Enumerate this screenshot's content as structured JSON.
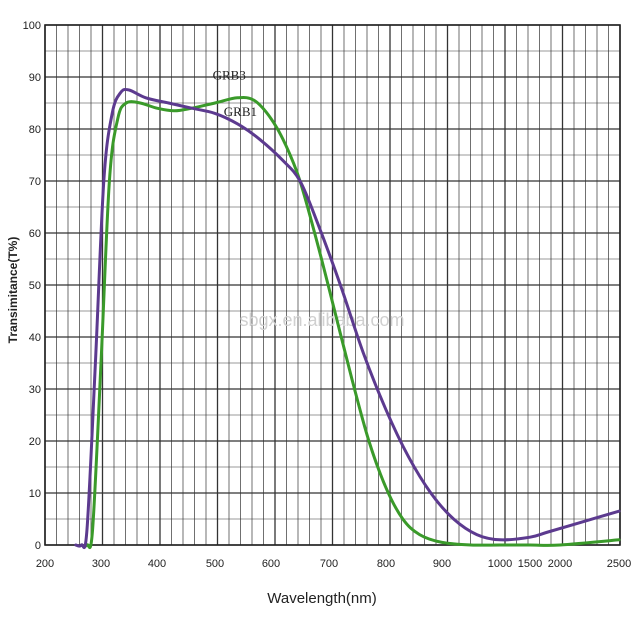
{
  "chart_data": {
    "type": "line",
    "title": "",
    "xlabel": "Wavelength(nm)",
    "ylabel": "Transimitance(T%)",
    "x_ticks": [
      "200",
      "300",
      "400",
      "500",
      "600",
      "700",
      "800",
      "900",
      "1000",
      "1500",
      "2000",
      "2500"
    ],
    "y_ticks": [
      "0",
      "10",
      "20",
      "30",
      "40",
      "50",
      "60",
      "70",
      "80",
      "90",
      "100"
    ],
    "ylim": [
      0,
      100
    ],
    "grid": true,
    "watermark": "sbgx.en.alibaba.com",
    "series": [
      {
        "name": "GRB3",
        "color": "#3a9a2a",
        "points": [
          [
            265,
            0
          ],
          [
            275,
            0
          ],
          [
            285,
            3
          ],
          [
            300,
            35
          ],
          [
            315,
            70
          ],
          [
            330,
            82
          ],
          [
            345,
            85
          ],
          [
            370,
            85
          ],
          [
            400,
            84
          ],
          [
            430,
            83.5
          ],
          [
            460,
            84
          ],
          [
            500,
            85
          ],
          [
            540,
            86
          ],
          [
            570,
            85.5
          ],
          [
            600,
            82
          ],
          [
            625,
            77
          ],
          [
            650,
            70
          ],
          [
            680,
            58
          ],
          [
            710,
            45
          ],
          [
            740,
            32
          ],
          [
            770,
            20
          ],
          [
            800,
            11
          ],
          [
            830,
            5
          ],
          [
            860,
            2
          ],
          [
            900,
            0.5
          ],
          [
            950,
            0
          ],
          [
            1000,
            0
          ],
          [
            1500,
            0
          ],
          [
            2000,
            0
          ],
          [
            2500,
            1
          ]
        ]
      },
      {
        "name": "GRB1",
        "color": "#5c3a8f",
        "points": [
          [
            255,
            0
          ],
          [
            265,
            0
          ],
          [
            275,
            3
          ],
          [
            290,
            35
          ],
          [
            305,
            70
          ],
          [
            320,
            83
          ],
          [
            335,
            87
          ],
          [
            350,
            87.5
          ],
          [
            380,
            86
          ],
          [
            420,
            85
          ],
          [
            460,
            84
          ],
          [
            500,
            83
          ],
          [
            540,
            81
          ],
          [
            580,
            78
          ],
          [
            620,
            74
          ],
          [
            650,
            70
          ],
          [
            680,
            62
          ],
          [
            720,
            50
          ],
          [
            760,
            37
          ],
          [
            800,
            26
          ],
          [
            840,
            17
          ],
          [
            880,
            10
          ],
          [
            920,
            5
          ],
          [
            960,
            2
          ],
          [
            1000,
            1
          ],
          [
            1500,
            1.5
          ],
          [
            1800,
            2.5
          ],
          [
            2200,
            4.5
          ],
          [
            2500,
            6.5
          ]
        ]
      }
    ],
    "series_labels": [
      {
        "series": "GRB3",
        "x": 535,
        "y": 89.5
      },
      {
        "series": "GRB1",
        "x": 555,
        "y": 82.5
      }
    ]
  }
}
